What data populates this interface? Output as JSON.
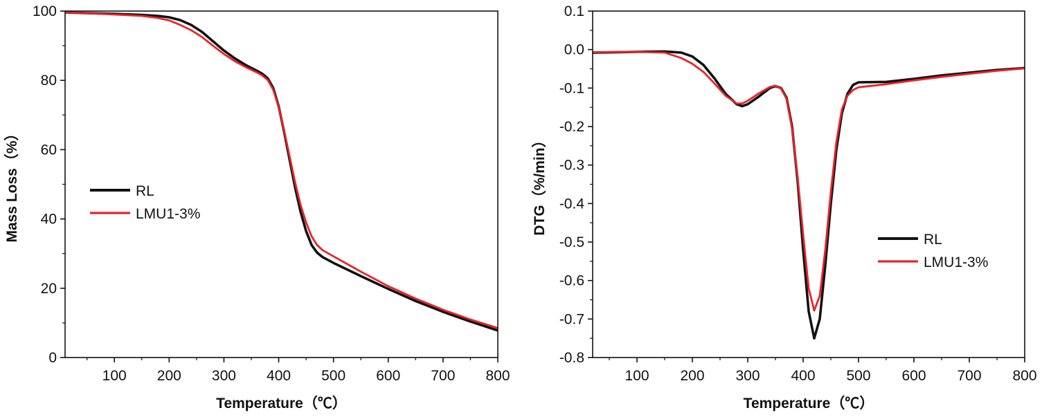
{
  "chart_data": [
    {
      "type": "line",
      "title": "",
      "xlabel": "Temperature（℃）",
      "ylabel": "Mass Loss（%）",
      "xlim": [
        10,
        800
      ],
      "ylim": [
        0,
        100
      ],
      "xticks": [
        100,
        200,
        300,
        400,
        500,
        600,
        700,
        800
      ],
      "yticks": [
        0,
        20,
        40,
        60,
        80,
        100
      ],
      "grid": false,
      "legend": "center-left",
      "series": [
        {
          "name": "RL",
          "color": "#111111",
          "points": [
            [
              10,
              99.6
            ],
            [
              50,
              99.4
            ],
            [
              100,
              99.2
            ],
            [
              150,
              98.9
            ],
            [
              180,
              98.6
            ],
            [
              200,
              98.2
            ],
            [
              220,
              97.4
            ],
            [
              240,
              96
            ],
            [
              260,
              94
            ],
            [
              280,
              91.3
            ],
            [
              300,
              88.6
            ],
            [
              320,
              86.3
            ],
            [
              340,
              84.4
            ],
            [
              360,
              82.8
            ],
            [
              370,
              81.9
            ],
            [
              380,
              80.6
            ],
            [
              390,
              77.8
            ],
            [
              400,
              72.5
            ],
            [
              410,
              65
            ],
            [
              420,
              57
            ],
            [
              430,
              49
            ],
            [
              440,
              42
            ],
            [
              450,
              36.5
            ],
            [
              460,
              32.5
            ],
            [
              470,
              30.3
            ],
            [
              480,
              29
            ],
            [
              500,
              27.3
            ],
            [
              550,
              23.5
            ],
            [
              600,
              19.8
            ],
            [
              650,
              16.3
            ],
            [
              700,
              13.2
            ],
            [
              750,
              10.4
            ],
            [
              800,
              7.8
            ]
          ]
        },
        {
          "name": "LMU1-3%",
          "color": "#e8232a",
          "points": [
            [
              10,
              99.6
            ],
            [
              50,
              99.4
            ],
            [
              100,
              99
            ],
            [
              150,
              98.6
            ],
            [
              180,
              98
            ],
            [
              200,
              97.3
            ],
            [
              220,
              96
            ],
            [
              240,
              94.5
            ],
            [
              260,
              92.5
            ],
            [
              280,
              90
            ],
            [
              300,
              87.6
            ],
            [
              320,
              85.5
            ],
            [
              340,
              83.8
            ],
            [
              360,
              82.3
            ],
            [
              370,
              81.4
            ],
            [
              380,
              80.1
            ],
            [
              390,
              77.3
            ],
            [
              400,
              72.3
            ],
            [
              410,
              65.4
            ],
            [
              420,
              58
            ],
            [
              430,
              50.5
            ],
            [
              440,
              44
            ],
            [
              450,
              39
            ],
            [
              460,
              35
            ],
            [
              470,
              32.5
            ],
            [
              480,
              31
            ],
            [
              500,
              29.2
            ],
            [
              550,
              24.8
            ],
            [
              600,
              20.6
            ],
            [
              650,
              17
            ],
            [
              700,
              13.8
            ],
            [
              750,
              11
            ],
            [
              800,
              8.5
            ]
          ]
        }
      ]
    },
    {
      "type": "line",
      "title": "",
      "xlabel": "Temperature（℃）",
      "ylabel": "DTG（%/min）",
      "xlim": [
        20,
        800
      ],
      "ylim": [
        -0.8,
        0.1
      ],
      "xticks": [
        100,
        200,
        300,
        400,
        500,
        600,
        700,
        800
      ],
      "yticks": [
        0.1,
        0.0,
        -0.1,
        -0.2,
        -0.3,
        -0.4,
        -0.5,
        -0.6,
        -0.7,
        -0.8
      ],
      "ytick_labels": [
        "0.1",
        "0.0",
        "-0.1",
        "-0.2",
        "-0.3",
        "-0.4",
        "-0.5",
        "-0.6",
        "-0.7",
        "-0.8"
      ],
      "grid": false,
      "legend": "center-right",
      "series": [
        {
          "name": "RL",
          "color": "#111111",
          "points": [
            [
              20,
              -0.008
            ],
            [
              100,
              -0.006
            ],
            [
              150,
              -0.005
            ],
            [
              180,
              -0.008
            ],
            [
              200,
              -0.018
            ],
            [
              220,
              -0.04
            ],
            [
              240,
              -0.075
            ],
            [
              260,
              -0.115
            ],
            [
              280,
              -0.142
            ],
            [
              290,
              -0.147
            ],
            [
              300,
              -0.142
            ],
            [
              320,
              -0.122
            ],
            [
              340,
              -0.1
            ],
            [
              350,
              -0.095
            ],
            [
              360,
              -0.1
            ],
            [
              370,
              -0.125
            ],
            [
              380,
              -0.2
            ],
            [
              390,
              -0.34
            ],
            [
              400,
              -0.52
            ],
            [
              410,
              -0.68
            ],
            [
              420,
              -0.75
            ],
            [
              430,
              -0.7
            ],
            [
              440,
              -0.56
            ],
            [
              450,
              -0.4
            ],
            [
              460,
              -0.26
            ],
            [
              470,
              -0.165
            ],
            [
              480,
              -0.115
            ],
            [
              490,
              -0.092
            ],
            [
              500,
              -0.085
            ],
            [
              550,
              -0.084
            ],
            [
              600,
              -0.076
            ],
            [
              650,
              -0.067
            ],
            [
              700,
              -0.06
            ],
            [
              750,
              -0.053
            ],
            [
              800,
              -0.048
            ]
          ]
        },
        {
          "name": "LMU1-3%",
          "color": "#e8232a",
          "points": [
            [
              20,
              -0.007
            ],
            [
              100,
              -0.006
            ],
            [
              150,
              -0.008
            ],
            [
              180,
              -0.022
            ],
            [
              200,
              -0.037
            ],
            [
              220,
              -0.058
            ],
            [
              240,
              -0.088
            ],
            [
              260,
              -0.12
            ],
            [
              280,
              -0.14
            ],
            [
              290,
              -0.14
            ],
            [
              300,
              -0.133
            ],
            [
              320,
              -0.114
            ],
            [
              340,
              -0.097
            ],
            [
              350,
              -0.094
            ],
            [
              360,
              -0.101
            ],
            [
              370,
              -0.128
            ],
            [
              380,
              -0.205
            ],
            [
              390,
              -0.33
            ],
            [
              400,
              -0.48
            ],
            [
              410,
              -0.62
            ],
            [
              420,
              -0.678
            ],
            [
              430,
              -0.64
            ],
            [
              440,
              -0.52
            ],
            [
              450,
              -0.37
            ],
            [
              460,
              -0.24
            ],
            [
              470,
              -0.155
            ],
            [
              480,
              -0.12
            ],
            [
              490,
              -0.105
            ],
            [
              500,
              -0.098
            ],
            [
              550,
              -0.09
            ],
            [
              600,
              -0.08
            ],
            [
              650,
              -0.071
            ],
            [
              700,
              -0.063
            ],
            [
              750,
              -0.055
            ],
            [
              800,
              -0.049
            ]
          ]
        }
      ]
    }
  ]
}
